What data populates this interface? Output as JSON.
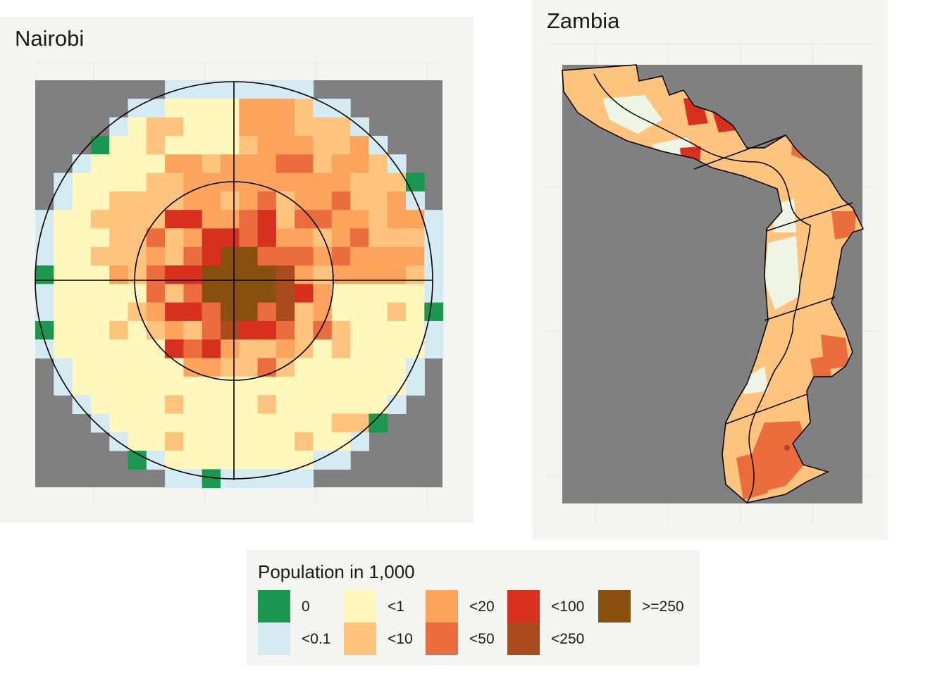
{
  "maps": {
    "nairobi": {
      "title": "Nairobi"
    },
    "zambia": {
      "title": "Zambia"
    }
  },
  "legend": {
    "title": "Population in 1,000",
    "items": [
      {
        "label": "0",
        "color": "#1a9850"
      },
      {
        "label": "<0.1",
        "color": "#d4ebf3"
      },
      {
        "label": "<1",
        "color": "#fff7bc"
      },
      {
        "label": "<10",
        "color": "#fec47e"
      },
      {
        "label": "<20",
        "color": "#fca45c"
      },
      {
        "label": "<50",
        "color": "#eb6c3c"
      },
      {
        "label": "<100",
        "color": "#d7301f"
      },
      {
        "label": "<250",
        "color": "#aa4b1e"
      },
      {
        "label": ">=250",
        "color": "#87500e"
      }
    ]
  },
  "colors": {
    "no_data": "#808080",
    "panel_background": "#f4f4f0",
    "boundary": "#000000"
  }
}
